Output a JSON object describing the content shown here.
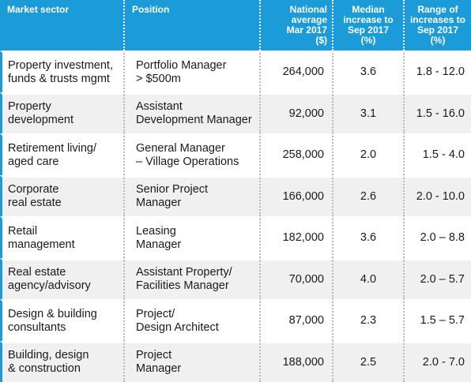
{
  "chart_data": {
    "type": "table",
    "columns": [
      [
        "Market sector"
      ],
      [
        "Position"
      ],
      [
        "National",
        "average",
        "Mar 2017",
        "($)"
      ],
      [
        "Median",
        "increase to",
        "Sep 2017",
        "(%)"
      ],
      [
        "Range of",
        "increases to",
        "Sep 2017",
        "(%)"
      ]
    ],
    "rows": [
      {
        "sector": [
          "Property investment,",
          "funds & trusts mgmt"
        ],
        "position": [
          "Portfolio Manager",
          "> $500m"
        ],
        "average": "264,000",
        "median": "3.6",
        "range": "1.8 - 12.0"
      },
      {
        "sector": [
          "Property",
          "development"
        ],
        "position": [
          "Assistant",
          "Development Manager"
        ],
        "average": "92,000",
        "median": "3.1",
        "range": "1.5 - 16.0"
      },
      {
        "sector": [
          "Retirement living/",
          "aged care"
        ],
        "position": [
          "General Manager",
          "– Village Operations"
        ],
        "average": "258,000",
        "median": "2.0",
        "range": "1.5 - 4.0"
      },
      {
        "sector": [
          "Corporate",
          "real estate"
        ],
        "position": [
          "Senior Project",
          "Manager"
        ],
        "average": "166,000",
        "median": "2.6",
        "range": "2.0 - 10.0"
      },
      {
        "sector": [
          "Retail",
          "management"
        ],
        "position": [
          "Leasing",
          "Manager"
        ],
        "average": "182,000",
        "median": "3.6",
        "range": "2.0 – 8.8"
      },
      {
        "sector": [
          "Real estate",
          "agency/advisory"
        ],
        "position": [
          "Assistant Property/",
          "Facilities Manager"
        ],
        "average": "70,000",
        "median": "4.0",
        "range": "2.0 – 5.7"
      },
      {
        "sector": [
          "Design & building",
          "consultants"
        ],
        "position": [
          "Project/",
          "Design Architect"
        ],
        "average": "87,000",
        "median": "2.3",
        "range": "1.5 – 5.7"
      },
      {
        "sector": [
          "Building, design",
          "& construction"
        ],
        "position": [
          "Project",
          "Manager"
        ],
        "average": "188,000",
        "median": "2.5",
        "range": "2.0 - 7.0"
      }
    ]
  },
  "colors": {
    "header_bg": "#1b9bd7",
    "accent": "#1b9bd7",
    "row_alt": "#f0f0f0"
  }
}
